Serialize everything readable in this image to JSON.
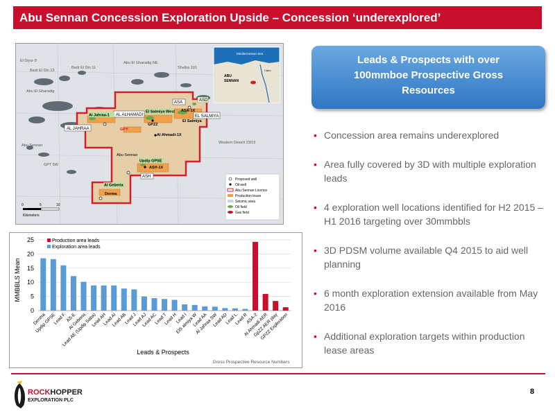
{
  "slide": {
    "title": "Abu Sennan Concession Exploration Upside – Concession ‘underexplored’",
    "page_number": "8"
  },
  "callout": {
    "lines": [
      "Leads & Prospects with over",
      "100mmboe Prospective Gross",
      "Resources"
    ],
    "color": "#3b82cf"
  },
  "bullets": [
    "Concession area remains underexplored",
    "Area fully covered by 3D with multiple exploration leads",
    "4 exploration well locations identified for H2 2015 – H1 2016 targeting over 30mmbbls",
    "3D PDSM volume available Q4 2015 to aid well planning",
    "6 month exploration extension available from May 2016",
    "Additional exploration targets within production lease areas"
  ],
  "map": {
    "field_labels": [
      "Abu El Gharadig NE",
      "Badr El Din 11",
      "Sheiba 101",
      "El Diyur 8",
      "Badr El Din 13",
      "Abu El Gharadig",
      "Abu Sennan",
      "GPT 5W",
      "Western Desert 23/15"
    ],
    "boxed_labels": [
      "AL JAHRAA",
      "AL ALHAMADI",
      "ASA",
      "ASD",
      "EL SALMIYA",
      "ASH"
    ],
    "green_labels": [
      "Al Jahraa-1",
      "El Salmiya West",
      "Updip GPSE",
      "Al Geberia"
    ],
    "orange_labels": [
      "GPY",
      "GPZZ",
      "ASA-1X",
      "ASH-1X",
      "Al Ahmadi-1X"
    ],
    "dark_labels": [
      "Abu Sennan",
      "Dorma",
      "El Salmiya"
    ],
    "legend": [
      "Proposed well",
      "Oil well",
      "Abu Sennan Licence",
      "Production lease",
      "Seismic area",
      "Oil field",
      "Gas field"
    ],
    "scale_ticks": [
      "0",
      "5",
      "10"
    ],
    "scale_unit": "Kilometers",
    "inset": {
      "sea": "Mediterranean Sea",
      "label_line1": "ABU",
      "label_line2": "SENNAN",
      "city": "Cairo"
    }
  },
  "chart_data": {
    "type": "bar",
    "ylabel": "MMBBLS Mean",
    "xlabel": "Leads & Prospects",
    "caption": "Gross Prospective Resource Numbers",
    "ylim": [
      0,
      25
    ],
    "yticks": [
      0,
      5,
      10,
      15,
      20,
      25
    ],
    "legend": [
      {
        "name": "Production area leads",
        "color": "#c8102e"
      },
      {
        "name": "Exploration area leads",
        "color": "#5b9bd5"
      }
    ],
    "categories": [
      "Denma",
      "Updip GPSE",
      "Lead F",
      "AS-E",
      "Al Geberia",
      "Lead AE (Updip Saba)",
      "Lead AH",
      "Lead AI",
      "Lead AB",
      "Lead J",
      "Lead AJ",
      "Lead AC",
      "Lead T",
      "Lead H",
      "Lead I",
      "ElS almiya W",
      "Lead AA",
      "Al Jahraa SW",
      "Lead AD",
      "Lead L",
      "Lead R",
      "ASA-2",
      "Al Ahmadi AER",
      "GpZZ AER play",
      "GPZZ Exploration"
    ],
    "values": [
      18.5,
      18.2,
      16.0,
      12.2,
      10.2,
      8.9,
      8.9,
      8.9,
      7.8,
      7.5,
      5.0,
      4.4,
      4.1,
      3.8,
      2.2,
      2.0,
      1.5,
      1.4,
      0.9,
      0.8,
      0.6,
      24.3,
      5.9,
      3.4,
      1.2
    ],
    "groups": [
      "exploration",
      "exploration",
      "exploration",
      "exploration",
      "exploration",
      "exploration",
      "exploration",
      "exploration",
      "exploration",
      "exploration",
      "exploration",
      "exploration",
      "exploration",
      "exploration",
      "exploration",
      "exploration",
      "exploration",
      "exploration",
      "exploration",
      "exploration",
      "exploration",
      "production",
      "production",
      "production",
      "production"
    ]
  },
  "logo": {
    "line1": "ROCKHOPPER",
    "line2": "EXPLORATION PLC",
    "accent": "#c8102e"
  }
}
